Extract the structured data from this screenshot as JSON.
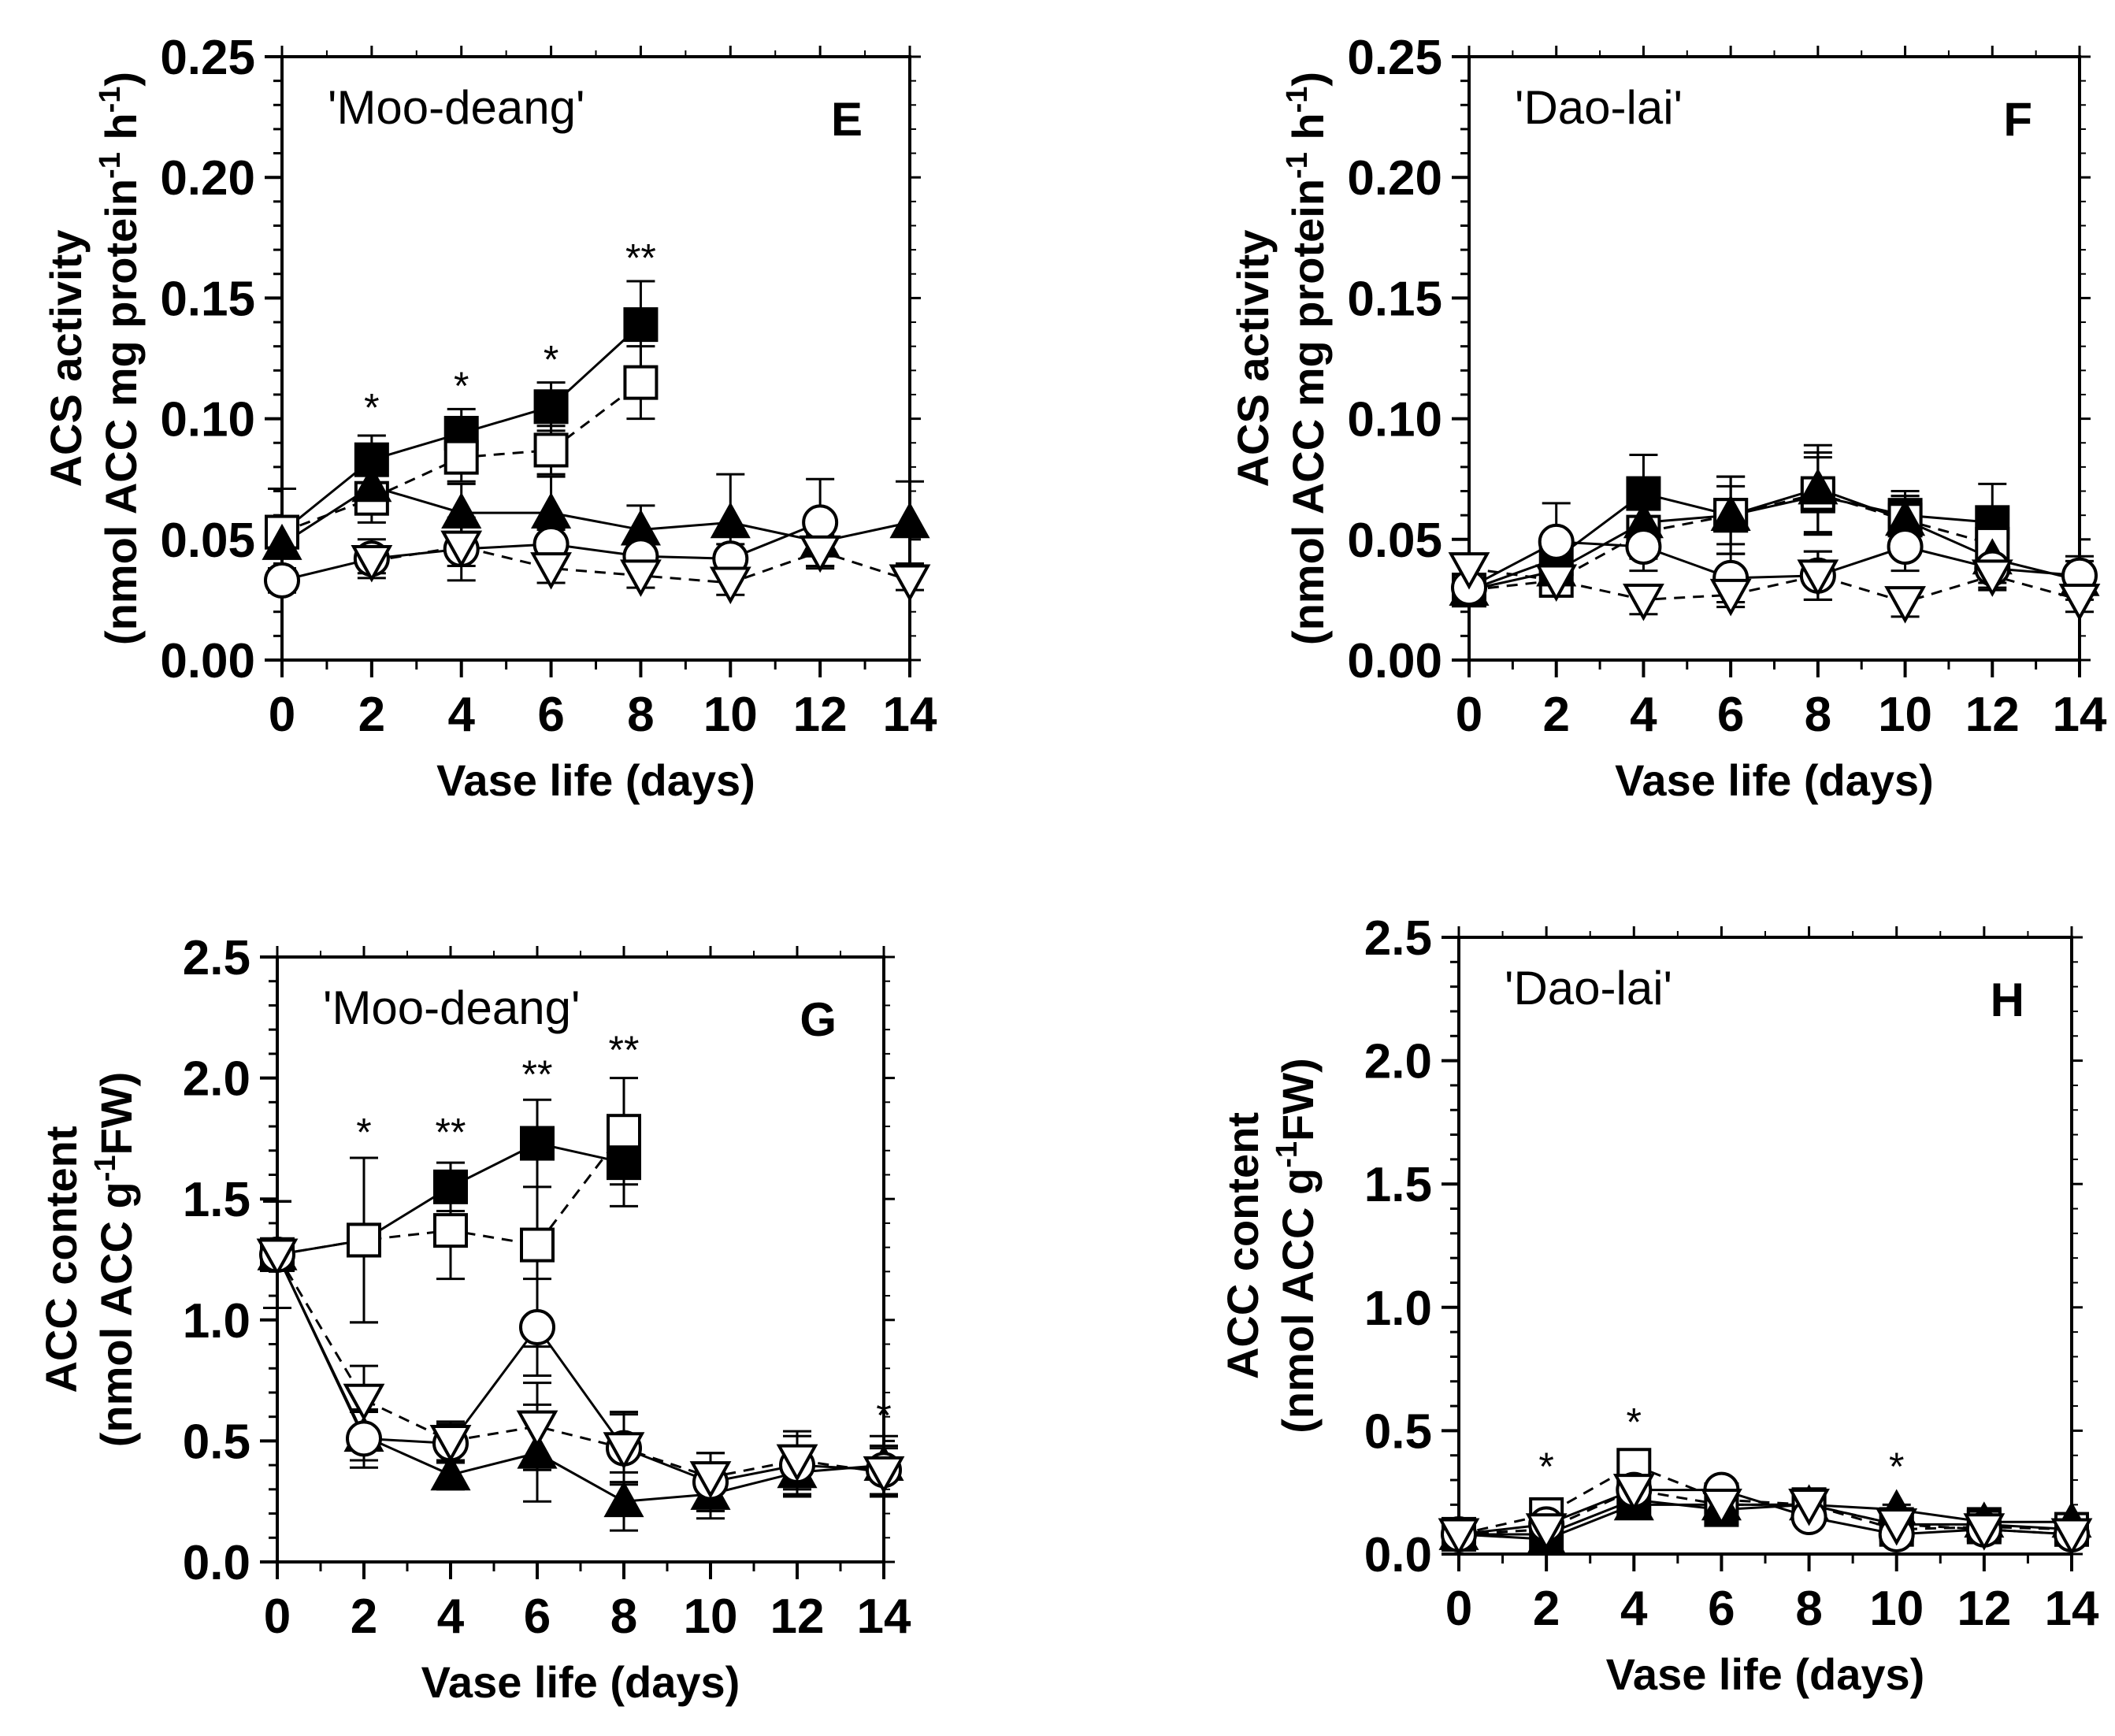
{
  "figure": {
    "panels_order": [
      "E",
      "F",
      "G",
      "H"
    ]
  },
  "chart_data": [
    {
      "type": "line",
      "panel": "E",
      "title": "'Moo-deang'",
      "panel_letter": "E",
      "xlabel": "Vase life (days)",
      "ylabel": [
        "ACS activity",
        "(nmol ACC mg protein",
        "-1",
        " h",
        "-1",
        ")"
      ],
      "xlim": [
        0,
        14
      ],
      "ylim": [
        0,
        0.25
      ],
      "xticks": [
        0,
        2,
        4,
        6,
        8,
        10,
        12,
        14
      ],
      "xtick_labels": [
        "0",
        "2",
        "4",
        "6",
        "8",
        "10",
        "12",
        "14"
      ],
      "yticks": [
        0,
        0.05,
        0.1,
        0.15,
        0.2,
        0.25
      ],
      "ytick_labels": [
        "0.00",
        "0.05",
        "0.10",
        "0.15",
        "0.20",
        "0.25"
      ],
      "series": [
        {
          "marker": "square-filled",
          "dash": false,
          "x": [
            0,
            2,
            4,
            6,
            8
          ],
          "y": [
            0.053,
            0.083,
            0.094,
            0.105,
            0.139
          ],
          "err": [
            0.018,
            0.01,
            0.01,
            0.01,
            0.018
          ]
        },
        {
          "marker": "square-open",
          "dash": true,
          "x": [
            0,
            2,
            4,
            6,
            8
          ],
          "y": [
            0.053,
            0.067,
            0.084,
            0.087,
            0.115
          ],
          "err": [
            0.018,
            0.01,
            0.01,
            0.01,
            0.015
          ]
        },
        {
          "marker": "triangle-filled",
          "dash": false,
          "x": [
            0,
            2,
            4,
            6,
            8,
            10,
            12,
            14
          ],
          "y": [
            0.048,
            0.072,
            0.061,
            0.061,
            0.054,
            0.057,
            0.049,
            0.057
          ],
          "err": [
            0.01,
            0.01,
            0.012,
            0.015,
            0.01,
            0.02,
            0.01,
            0.017
          ]
        },
        {
          "marker": "circle-open",
          "dash": false,
          "x": [
            0,
            2,
            4,
            6,
            8,
            10,
            12
          ],
          "y": [
            0.033,
            0.042,
            0.046,
            0.048,
            0.043,
            0.042,
            0.057
          ],
          "err": [
            0.005,
            0.008,
            0.013,
            0.006,
            0.005,
            0.006,
            0.018
          ]
        },
        {
          "marker": "triangle-down-open",
          "dash": true,
          "x": [
            2,
            4,
            6,
            8,
            10,
            12,
            14
          ],
          "y": [
            0.041,
            0.047,
            0.038,
            0.035,
            0.032,
            0.045,
            0.033
          ],
          "err": [
            0.005,
            0.008,
            0.006,
            0.005,
            0.005,
            0.007,
            0.004
          ]
        }
      ],
      "annotations": [
        {
          "x": 2,
          "y": 0.099,
          "text": "*"
        },
        {
          "x": 4,
          "y": 0.108,
          "text": "*"
        },
        {
          "x": 6,
          "y": 0.119,
          "text": "*"
        },
        {
          "x": 8,
          "y": 0.161,
          "text": "**"
        }
      ]
    },
    {
      "type": "line",
      "panel": "F",
      "title": "'Dao-lai'",
      "panel_letter": "F",
      "xlabel": "Vase life (days)",
      "ylabel": [
        "ACS activity",
        "(nmol ACC mg protein",
        "-1",
        " h",
        "-1",
        ")"
      ],
      "xlim": [
        0,
        14
      ],
      "ylim": [
        0,
        0.25
      ],
      "xticks": [
        0,
        2,
        4,
        6,
        8,
        10,
        12,
        14
      ],
      "xtick_labels": [
        "0",
        "2",
        "4",
        "6",
        "8",
        "10",
        "12",
        "14"
      ],
      "yticks": [
        0,
        0.05,
        0.1,
        0.15,
        0.2,
        0.25
      ],
      "ytick_labels": [
        "0.00",
        "0.05",
        "0.10",
        "0.15",
        "0.20",
        "0.25"
      ],
      "series": [
        {
          "marker": "square-filled",
          "dash": false,
          "x": [
            0,
            2,
            4,
            6,
            8,
            10,
            12
          ],
          "y": [
            0.029,
            0.042,
            0.069,
            0.06,
            0.068,
            0.06,
            0.057
          ],
          "err": [
            0.005,
            0.01,
            0.016,
            0.016,
            0.016,
            0.01,
            0.016
          ]
        },
        {
          "marker": "square-open",
          "dash": true,
          "x": [
            0,
            2,
            4,
            6,
            8,
            10,
            12
          ],
          "y": [
            0.029,
            0.033,
            0.053,
            0.06,
            0.069,
            0.058,
            0.048
          ],
          "err": [
            0.005,
            0.005,
            0.01,
            0.012,
            0.017,
            0.01,
            0.01
          ]
        },
        {
          "marker": "triangle-filled",
          "dash": false,
          "x": [
            0,
            2,
            4,
            6,
            8,
            10,
            12,
            14
          ],
          "y": [
            0.029,
            0.037,
            0.057,
            0.06,
            0.071,
            0.058,
            0.042,
            0.033
          ],
          "err": [
            0.005,
            0.008,
            0.015,
            0.016,
            0.018,
            0.01,
            0.01,
            0.008
          ]
        },
        {
          "marker": "circle-open",
          "dash": false,
          "x": [
            0,
            2,
            4,
            6,
            8,
            10,
            12,
            14
          ],
          "y": [
            0.03,
            0.049,
            0.047,
            0.034,
            0.035,
            0.047,
            0.038,
            0.035
          ],
          "err": [
            0.005,
            0.016,
            0.01,
            0.01,
            0.01,
            0.01,
            0.008,
            0.008
          ]
        },
        {
          "marker": "triangle-down-open",
          "dash": true,
          "x": [
            0,
            2,
            4,
            6,
            8,
            10,
            12,
            14
          ],
          "y": [
            0.038,
            0.033,
            0.025,
            0.027,
            0.035,
            0.024,
            0.035,
            0.025
          ],
          "err": [
            0.005,
            0.005,
            0.006,
            0.005,
            0.01,
            0.006,
            0.006,
            0.005
          ]
        }
      ],
      "annotations": []
    },
    {
      "type": "line",
      "panel": "G",
      "title": "'Moo-deang'",
      "panel_letter": "G",
      "xlabel": "Vase life (days)",
      "ylabel": [
        "ACC content",
        "(nmol ACC g",
        "-1",
        "FW)"
      ],
      "xlim": [
        0,
        14
      ],
      "ylim": [
        0,
        2.5
      ],
      "xticks": [
        0,
        2,
        4,
        6,
        8,
        10,
        12,
        14
      ],
      "xtick_labels": [
        "0",
        "2",
        "4",
        "6",
        "8",
        "10",
        "12",
        "14"
      ],
      "yticks": [
        0,
        0.5,
        1.0,
        1.5,
        2.0,
        2.5
      ],
      "ytick_labels": [
        "0.0",
        "0.5",
        "1.0",
        "1.5",
        "2.0",
        "2.5"
      ],
      "series": [
        {
          "marker": "square-filled",
          "dash": false,
          "x": [
            0,
            2,
            4,
            6,
            8
          ],
          "y": [
            1.27,
            1.33,
            1.55,
            1.73,
            1.65
          ],
          "err": [
            0.22,
            0.34,
            0.1,
            0.18,
            0.18
          ]
        },
        {
          "marker": "square-open",
          "dash": true,
          "x": [
            0,
            2,
            4,
            6,
            8
          ],
          "y": [
            1.27,
            1.33,
            1.37,
            1.31,
            1.78
          ],
          "err": [
            0.22,
            0.34,
            0.2,
            0.42,
            0.22
          ]
        },
        {
          "marker": "triangle-filled",
          "dash": false,
          "x": [
            0,
            2,
            4,
            6,
            8,
            10,
            12,
            14
          ],
          "y": [
            1.27,
            0.52,
            0.36,
            0.45,
            0.25,
            0.28,
            0.37,
            0.4
          ],
          "err": [
            0.22,
            0.1,
            0.06,
            0.2,
            0.12,
            0.1,
            0.1,
            0.12
          ]
        },
        {
          "marker": "circle-open",
          "dash": false,
          "x": [
            0,
            2,
            4,
            6,
            8,
            10,
            12,
            14
          ],
          "y": [
            1.27,
            0.51,
            0.49,
            0.97,
            0.47,
            0.33,
            0.4,
            0.38
          ],
          "err": [
            0.22,
            0.12,
            0.08,
            0.2,
            0.15,
            0.12,
            0.12,
            0.1
          ]
        },
        {
          "marker": "triangle-down-open",
          "dash": true,
          "x": [
            0,
            2,
            4,
            6,
            8,
            10,
            12,
            14
          ],
          "y": [
            1.27,
            0.67,
            0.5,
            0.56,
            0.47,
            0.35,
            0.42,
            0.37
          ],
          "err": [
            0.22,
            0.14,
            0.08,
            0.18,
            0.14,
            0.1,
            0.12,
            0.1
          ]
        }
      ],
      "annotations": [
        {
          "x": 2,
          "y": 1.72,
          "text": "*"
        },
        {
          "x": 4,
          "y": 1.72,
          "text": "**"
        },
        {
          "x": 6,
          "y": 1.96,
          "text": "**"
        },
        {
          "x": 8,
          "y": 2.06,
          "text": "**"
        },
        {
          "x": 14,
          "y": 0.55,
          "text": "*"
        }
      ]
    },
    {
      "type": "line",
      "panel": "H",
      "title": "'Dao-lai'",
      "panel_letter": "H",
      "xlabel": "Vase life (days)",
      "ylabel": [
        "ACC content",
        "(nmol ACC g",
        "-1",
        "FW)"
      ],
      "xlim": [
        0,
        14
      ],
      "ylim": [
        0,
        2.5
      ],
      "xticks": [
        0,
        2,
        4,
        6,
        8,
        10,
        12,
        14
      ],
      "xtick_labels": [
        "0",
        "2",
        "4",
        "6",
        "8",
        "10",
        "12",
        "14"
      ],
      "yticks": [
        0,
        0.5,
        1.0,
        1.5,
        2.0,
        2.5
      ],
      "ytick_labels": [
        "0.0",
        "0.5",
        "1.0",
        "1.5",
        "2.0",
        "2.5"
      ],
      "series": [
        {
          "marker": "square-filled",
          "dash": false,
          "x": [
            0,
            2,
            4,
            6,
            8,
            10,
            12,
            14
          ],
          "y": [
            0.08,
            0.08,
            0.22,
            0.18,
            0.2,
            0.12,
            0.12,
            0.1
          ],
          "err": [
            0.02,
            0.03,
            0.03,
            0.02,
            0.02,
            0.02,
            0.02,
            0.02
          ]
        },
        {
          "marker": "square-open",
          "dash": true,
          "x": [
            0,
            2,
            4,
            6,
            8,
            10,
            12,
            14
          ],
          "y": [
            0.08,
            0.16,
            0.36,
            0.22,
            0.2,
            0.1,
            0.11,
            0.1
          ],
          "err": [
            0.02,
            0.03,
            0.04,
            0.02,
            0.02,
            0.02,
            0.02,
            0.02
          ]
        },
        {
          "marker": "triangle-filled",
          "dash": false,
          "x": [
            0,
            2,
            4,
            6,
            8,
            10,
            12,
            14
          ],
          "y": [
            0.08,
            0.06,
            0.2,
            0.2,
            0.2,
            0.18,
            0.13,
            0.13
          ],
          "err": [
            0.02,
            0.02,
            0.03,
            0.02,
            0.02,
            0.02,
            0.02,
            0.02
          ]
        },
        {
          "marker": "circle-open",
          "dash": false,
          "x": [
            0,
            2,
            4,
            6,
            8,
            10,
            12,
            14
          ],
          "y": [
            0.08,
            0.12,
            0.26,
            0.26,
            0.15,
            0.08,
            0.1,
            0.08
          ],
          "err": [
            0.02,
            0.02,
            0.03,
            0.02,
            0.02,
            0.02,
            0.02,
            0.02
          ]
        },
        {
          "marker": "triangle-down-open",
          "dash": true,
          "x": [
            0,
            2,
            4,
            6,
            8,
            10,
            12,
            14
          ],
          "y": [
            0.08,
            0.1,
            0.26,
            0.2,
            0.2,
            0.12,
            0.1,
            0.08
          ],
          "err": [
            0.02,
            0.02,
            0.03,
            0.02,
            0.02,
            0.02,
            0.02,
            0.02
          ]
        }
      ],
      "annotations": [
        {
          "x": 2,
          "y": 0.3,
          "text": "*"
        },
        {
          "x": 4,
          "y": 0.48,
          "text": "*"
        },
        {
          "x": 10,
          "y": 0.3,
          "text": "*"
        }
      ]
    }
  ]
}
